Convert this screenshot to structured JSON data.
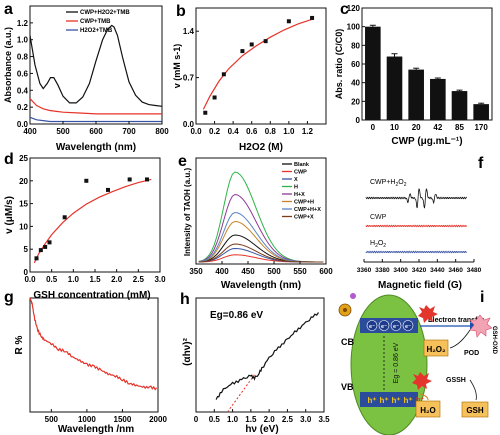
{
  "panels": {
    "a": {
      "letter": "a",
      "chart_data": {
        "type": "line",
        "xlabel": "Wavelength (nm)",
        "ylabel": "Absorbance (a.u.)",
        "xlim": [
          400,
          800
        ],
        "ylim": [
          0,
          1.4
        ],
        "xticks": [
          "400",
          "500",
          "600",
          "700",
          "800"
        ],
        "yticks": [
          "0.0",
          "0.2",
          "0.4",
          "0.6",
          "0.8",
          "1.0",
          "1.2"
        ],
        "legend_position": "top-right",
        "series": [
          {
            "name": "CWP+H2O2+TMB",
            "color": "#111111",
            "x": [
              400,
              415,
              430,
              440,
              452,
              462,
              472,
              485,
              500,
              520,
              540,
              560,
              580,
              600,
              620,
              635,
              648,
              655,
              665,
              680,
              700,
              720,
              740,
              760,
              780,
              800
            ],
            "y": [
              1.05,
              0.7,
              0.48,
              0.42,
              0.48,
              0.55,
              0.55,
              0.46,
              0.33,
              0.25,
              0.25,
              0.32,
              0.48,
              0.75,
              1.0,
              1.12,
              1.17,
              1.15,
              1.05,
              0.8,
              0.5,
              0.34,
              0.26,
              0.23,
              0.22,
              0.21
            ]
          },
          {
            "name": "CWP+TMB",
            "color": "#e63329",
            "x": [
              400,
              420,
              440,
              460,
              480,
              500,
              550,
              600,
              650,
              700,
              750,
              800
            ],
            "y": [
              0.3,
              0.22,
              0.18,
              0.16,
              0.15,
              0.14,
              0.13,
              0.12,
              0.12,
              0.12,
              0.12,
              0.12
            ]
          },
          {
            "name": "H2O2+TMB",
            "color": "#3a53a4",
            "x": [
              400,
              420,
              440,
              460,
              500,
              600,
              700,
              800
            ],
            "y": [
              0.08,
              0.05,
              0.04,
              0.03,
              0.03,
              0.03,
              0.03,
              0.03
            ]
          }
        ]
      }
    },
    "b": {
      "letter": "b",
      "chart_data": {
        "type": "scatter",
        "xlabel": "H2O2 (M)",
        "ylabel": "v (mM s-1)",
        "xlim": [
          0,
          1.4
        ],
        "ylim": [
          0,
          1.75
        ],
        "xticks": [
          "0.0",
          "0.2",
          "0.4",
          "0.6",
          "0.8",
          "1.0",
          "1.2"
        ],
        "yticks": [
          "0.0",
          "0.7",
          "1.4"
        ],
        "points": {
          "x": [
            0.1,
            0.2,
            0.3,
            0.5,
            0.6,
            0.75,
            1.0,
            1.25
          ],
          "y": [
            0.17,
            0.4,
            0.75,
            1.1,
            1.2,
            1.25,
            1.55,
            1.6
          ]
        },
        "fit": {
          "color": "#e63329",
          "x": [
            0.08,
            0.15,
            0.25,
            0.35,
            0.5,
            0.65,
            0.8,
            0.95,
            1.1,
            1.25
          ],
          "y": [
            0.22,
            0.42,
            0.65,
            0.83,
            1.03,
            1.18,
            1.31,
            1.42,
            1.51,
            1.58
          ]
        }
      }
    },
    "c": {
      "letter": "c",
      "chart_data": {
        "type": "bar",
        "xlabel": "CWP (μg.mL⁻¹)",
        "ylabel": "Abs. ratio (C/C0)",
        "categories": [
          "0",
          "10",
          "20",
          "42",
          "85",
          "170"
        ],
        "values": [
          100,
          68,
          54,
          44,
          31,
          17
        ],
        "errors": [
          1.5,
          3,
          1.5,
          1,
          1,
          1
        ],
        "ylim": [
          0,
          120
        ],
        "yticks": [
          "0",
          "20",
          "40",
          "60",
          "80",
          "100",
          "120"
        ],
        "bar_color": "#111111"
      }
    },
    "d": {
      "letter": "d",
      "chart_data": {
        "type": "scatter",
        "xlabel": "GSH concentration (mM)",
        "ylabel": "v (μM/s)",
        "xlim": [
          0,
          3.0
        ],
        "ylim": [
          0,
          25
        ],
        "xticks": [
          "0.0",
          "0.5",
          "1.0",
          "1.5",
          "2.0",
          "2.5",
          "3.0"
        ],
        "yticks": [
          "0",
          "5",
          "10",
          "15",
          "20",
          "25"
        ],
        "points": {
          "x": [
            0.15,
            0.25,
            0.35,
            0.45,
            0.8,
            1.3,
            1.8,
            2.3,
            2.7
          ],
          "y": [
            3.0,
            4.8,
            5.5,
            6.5,
            12.0,
            20.0,
            18.0,
            20.3,
            20.3
          ]
        },
        "fit": {
          "color": "#e63329",
          "x": [
            0.1,
            0.2,
            0.35,
            0.5,
            0.75,
            1.0,
            1.3,
            1.6,
            1.9,
            2.2,
            2.5,
            2.8
          ],
          "y": [
            2.0,
            4.0,
            6.2,
            8.2,
            10.8,
            12.9,
            14.9,
            16.4,
            17.6,
            18.7,
            19.6,
            20.3
          ]
        }
      }
    },
    "e": {
      "letter": "e",
      "chart_data": {
        "type": "line",
        "xlabel": "Wavelength (nm)",
        "ylabel": "Intensity of TAOH (a.u.)",
        "xlim": [
          350,
          600
        ],
        "xticks": [
          "350",
          "400",
          "450",
          "500",
          "550",
          "600"
        ],
        "legend_position": "top-right",
        "series": [
          {
            "name": "Blank",
            "color": "#111111",
            "peak": 0.3
          },
          {
            "name": "CWP",
            "color": "#e63329",
            "peak": 0.08
          },
          {
            "name": "X",
            "color": "#3a53a4",
            "peak": 0.15
          },
          {
            "name": "H",
            "color": "#2fb44a",
            "peak": 1.0
          },
          {
            "name": "H+X",
            "color": "#8e3a96",
            "peak": 0.75
          },
          {
            "name": "CWP+H",
            "color": "#c9832a",
            "peak": 0.45
          },
          {
            "name": "CWP+H+X",
            "color": "#5a86c5",
            "peak": 0.55
          },
          {
            "name": "CWP+X",
            "color": "#7a3d18",
            "peak": 0.2
          }
        ]
      }
    },
    "f": {
      "letter": "f",
      "chart_data": {
        "type": "line",
        "xlabel": "Magnetic field (G)",
        "xlim": [
          3360,
          3480
        ],
        "xticks": [
          "3360",
          "3380",
          "3400",
          "3420",
          "3440",
          "3460",
          "3480"
        ],
        "series": [
          {
            "name": "CWP+H2O2",
            "color": "#111111"
          },
          {
            "name": "CWP",
            "color": "#e63329"
          },
          {
            "name": "H2O2",
            "color": "#3a53a4"
          }
        ]
      }
    },
    "g": {
      "letter": "g",
      "chart_data": {
        "type": "line",
        "xlabel": "Wavelength /nm",
        "ylabel": "R %",
        "xlim": [
          200,
          2000
        ],
        "ylim": [
          0,
          60
        ],
        "xticks": [
          "500",
          "1000",
          "1500",
          "2000"
        ],
        "yticks": [
          "0",
          "10",
          "20",
          "30",
          "40",
          "50",
          "60"
        ],
        "series": [
          {
            "name": "",
            "color": "#e63329",
            "x": [
              200,
              230,
              260,
              300,
              350,
              400,
              500,
              600,
              700,
              800,
              900,
              1000,
              1100,
              1200,
              1300,
              1400,
              1500,
              1600,
              1700,
              1800,
              1900,
              2000
            ],
            "y": [
              60,
              57,
              50,
              44,
              40,
              38,
              36,
              33,
              32,
              29,
              27,
              25,
              24,
              22,
              20,
              19,
              17,
              15,
              14,
              13,
              13,
              12
            ]
          }
        ]
      }
    },
    "h": {
      "letter": "h",
      "annotation": "Eg=0.86 eV",
      "chart_data": {
        "type": "line",
        "xlabel": "hν (eV)",
        "ylabel": "(αhν)²",
        "xlim": [
          0,
          3.5
        ],
        "xticks": [
          "0",
          "0.5",
          "1.0",
          "1.5",
          "2.0",
          "2.5",
          "3.0",
          "3.5"
        ],
        "series": [
          {
            "name": "",
            "color": "#111111",
            "x": [
              0.55,
              0.7,
              0.9,
              1.1,
              1.3,
              1.5,
              1.6,
              1.7,
              1.8,
              2.0,
              2.2,
              2.4,
              2.6,
              2.8,
              3.0,
              3.2,
              3.4
            ],
            "y": [
              0.12,
              0.2,
              0.26,
              0.29,
              0.32,
              0.35,
              0.33,
              0.36,
              0.42,
              0.52,
              0.6,
              0.67,
              0.74,
              0.8,
              0.86,
              0.92,
              0.97
            ]
          }
        ],
        "tangent": {
          "color": "#e63329",
          "x": [
            0.86,
            1.6
          ],
          "y": [
            0.0,
            0.36
          ]
        }
      }
    },
    "i": {
      "letter": "i",
      "cb": "CB",
      "vb": "VB",
      "eg": "Eg = 0.86 eV",
      "electrons": "e⁻",
      "holes": "h⁺",
      "electron_transfer": "Electron transfer",
      "h2o2": "H₂O₂",
      "h2o": "H₂O",
      "pod": "POD",
      "gssg": "GSSH",
      "gsh": "GSH",
      "gsh_oxd": "GSH-OXD",
      "oh_radical": "•OH"
    }
  },
  "colors": {
    "axis": "#111111",
    "red": "#e63329",
    "blue": "#3a53a4",
    "green_ellipse": "#7cc242",
    "orange_box": "#f6c05a"
  }
}
